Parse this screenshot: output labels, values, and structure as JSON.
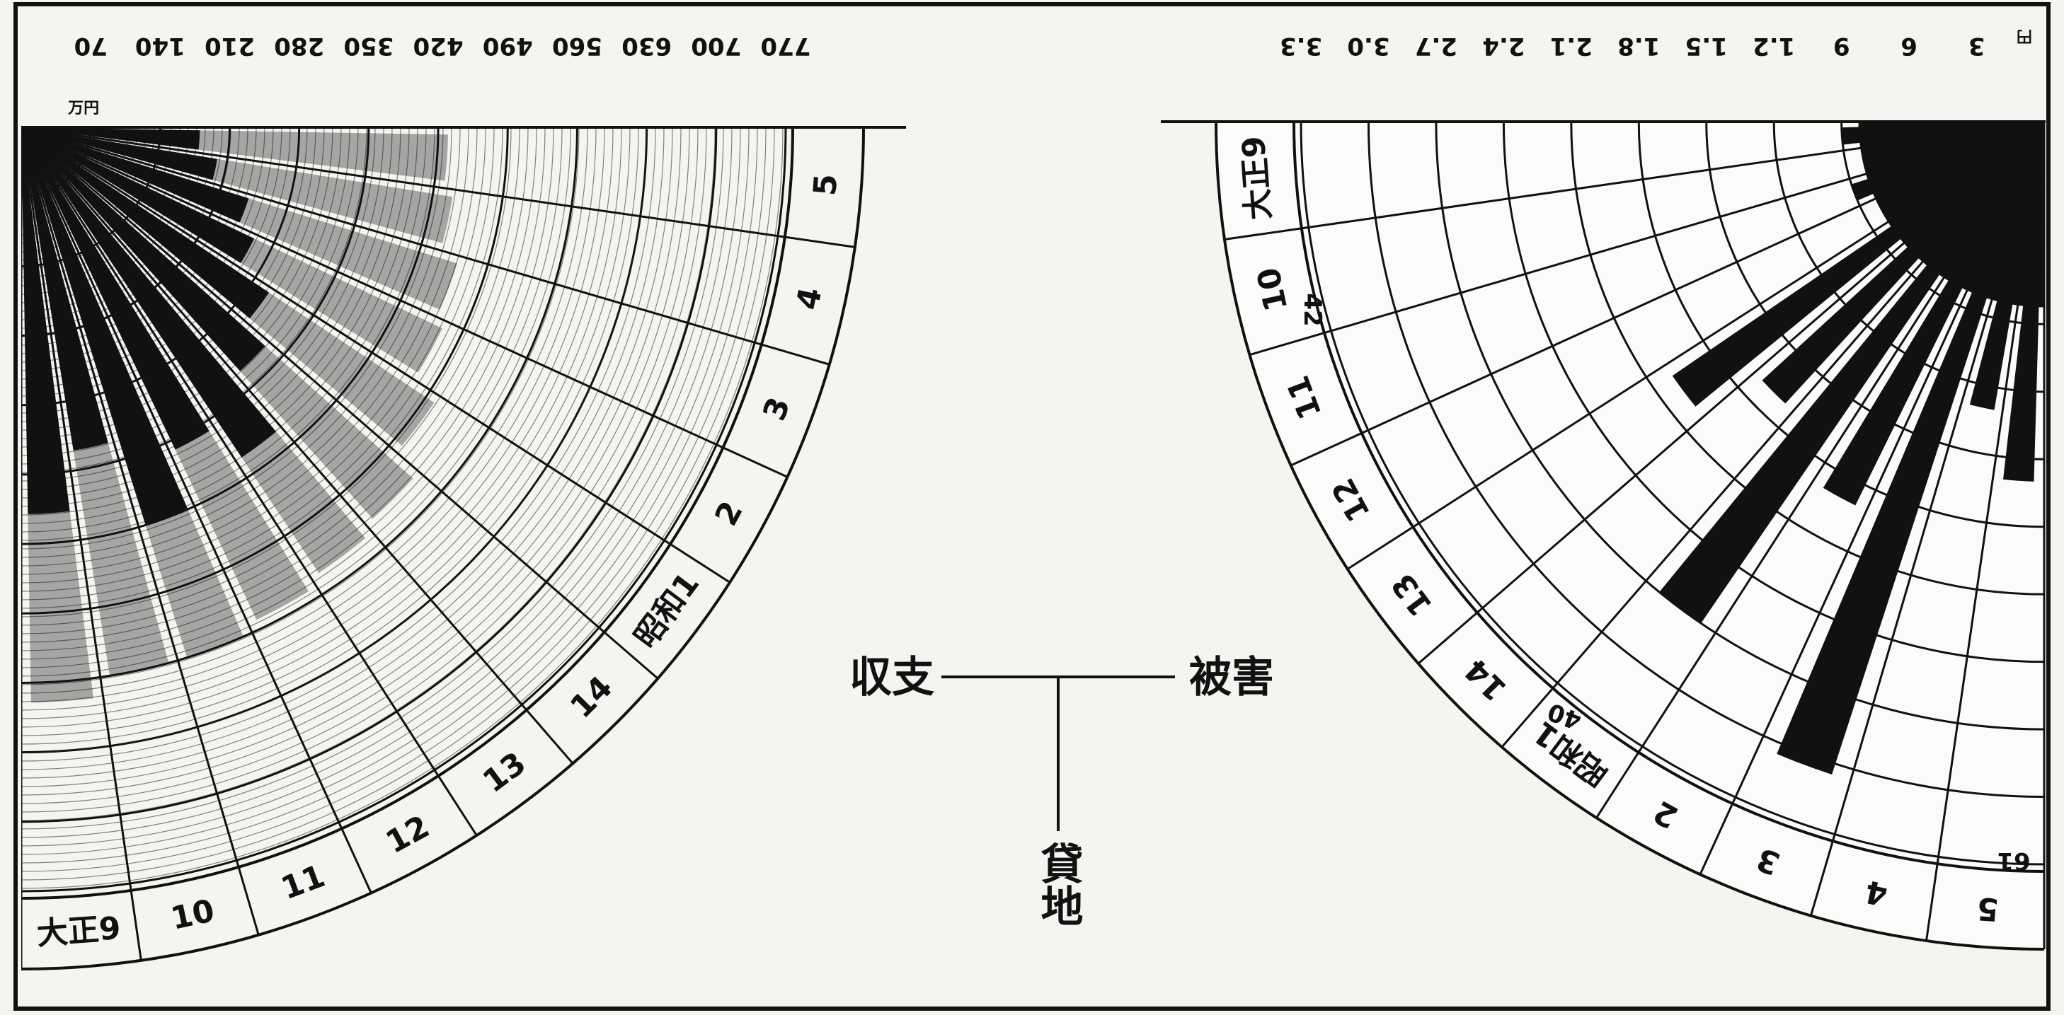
{
  "chart_data": [
    {
      "type": "radial-bar",
      "title": "収支",
      "unit_label": "万円",
      "axis_ticks": [
        "70",
        "140",
        "210",
        "280",
        "350",
        "420",
        "490",
        "560",
        "630",
        "700",
        "770"
      ],
      "ring_labels": [
        "大正9",
        "10",
        "11",
        "12",
        "13",
        "14",
        "昭和1",
        "2",
        "3",
        "4",
        "5"
      ],
      "ylim": [
        0,
        770
      ],
      "series": [
        {
          "values": [
            390,
            330,
            420,
            360,
            400,
            330,
            300,
            260,
            240,
            200,
            180
          ]
        },
        {
          "values": [
            580,
            560,
            560,
            550,
            540,
            530,
            500,
            470,
            460,
            440,
            430
          ]
        }
      ]
    },
    {
      "type": "radial-bar",
      "title": "被害",
      "unit_label": "円",
      "axis_ticks": [
        "3",
        "6",
        "9",
        "1.2",
        "1.5",
        "1.8",
        "2.1",
        "2.4",
        "2.7",
        "3.0",
        "3.3"
      ],
      "ring_labels": [
        "大正9",
        "10",
        "11",
        "12",
        "13",
        "14",
        "昭和1",
        "2",
        "3",
        "4",
        "5"
      ],
      "ylim": [
        0,
        3.3
      ],
      "annotations": [
        "42",
        "40",
        "61"
      ],
      "series": [
        {
          "values": [
            1.6,
            1.3,
            3.05,
            1.9,
            2.7,
            1.7,
            2.0,
            0.4,
            0.9,
            0.6,
            0.9
          ]
        }
      ]
    }
  ],
  "center": {
    "left_label": "収支",
    "right_label": "被害",
    "bottom_label": "貸地"
  }
}
